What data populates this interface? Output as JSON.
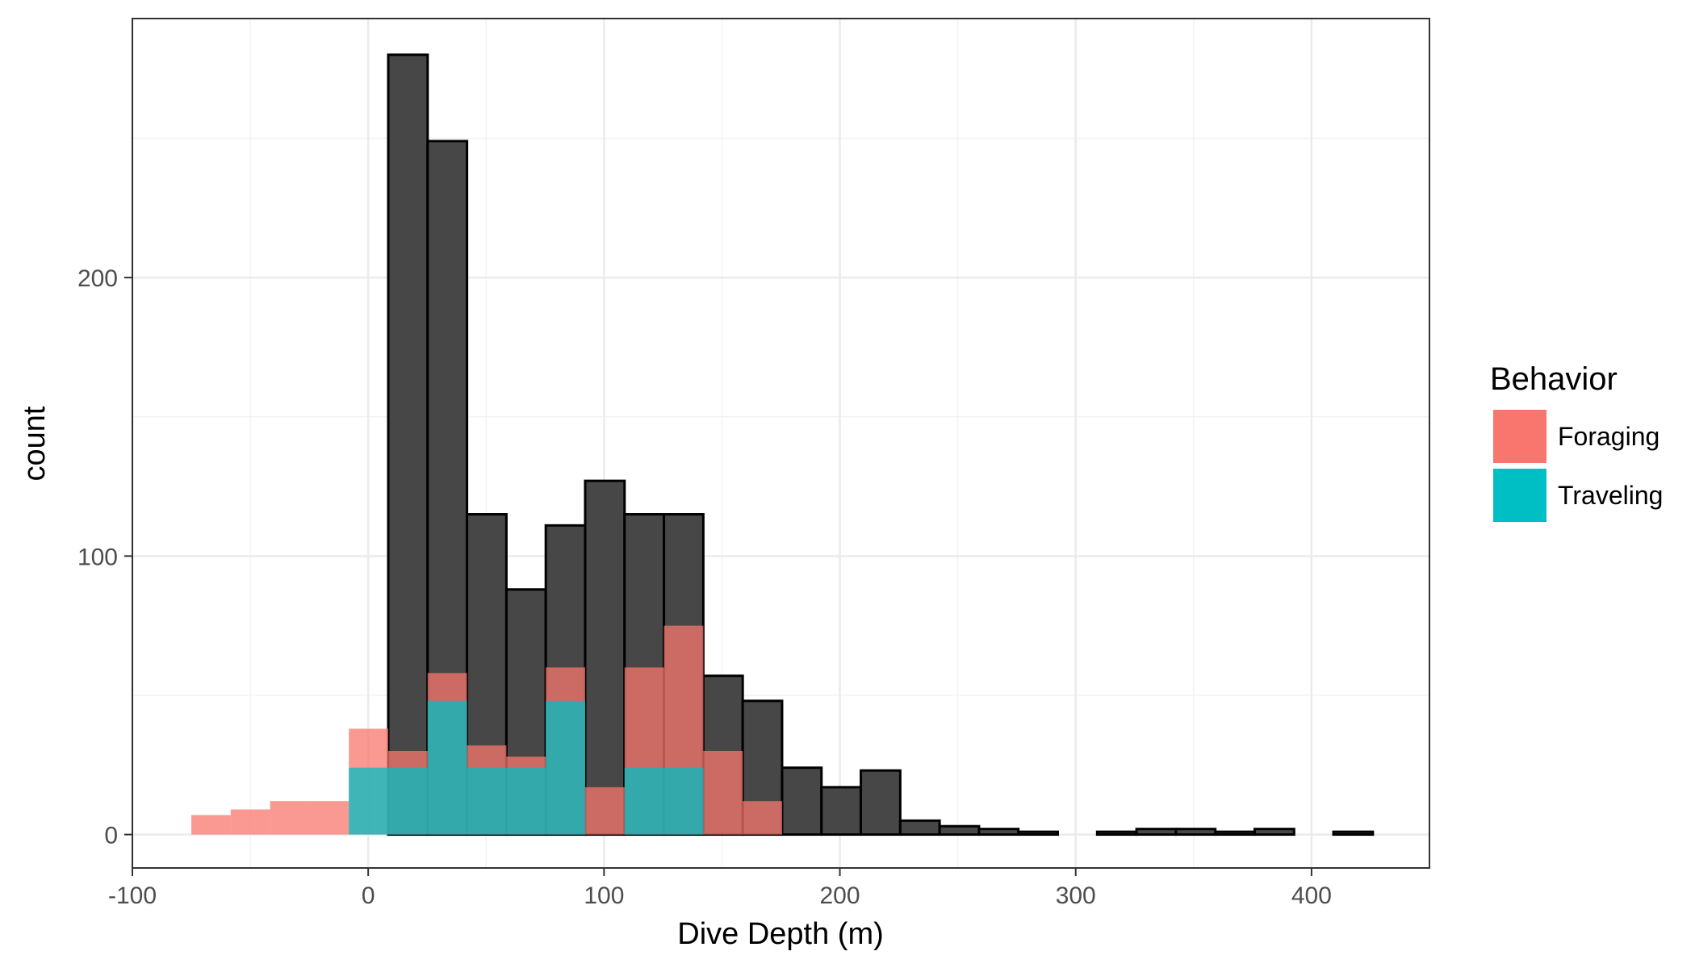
{
  "chart_data": {
    "type": "bar",
    "xlabel": "Dive Depth (m)",
    "ylabel": "count",
    "xlim": [
      -100,
      450
    ],
    "ylim": [
      -12,
      293
    ],
    "x_ticks": [
      -100,
      0,
      100,
      200,
      300,
      400
    ],
    "x_tick_labels": [
      "-100",
      "0",
      "100",
      "200",
      "300",
      "400"
    ],
    "y_ticks": [
      0,
      100,
      200
    ],
    "y_tick_labels": [
      "0",
      "100",
      "200"
    ],
    "grid": true,
    "bin_width": 16.7,
    "total_series": {
      "bins": [
        {
          "x0": -75.0,
          "x1": -58.3,
          "count": 0
        },
        {
          "x0": -58.3,
          "x1": -41.6,
          "count": 0
        },
        {
          "x0": -41.6,
          "x1": -24.9,
          "count": 0
        },
        {
          "x0": -24.9,
          "x1": -8.2,
          "count": 0
        },
        {
          "x0": -8.2,
          "x1": 8.5,
          "count": 0
        },
        {
          "x0": 8.5,
          "x1": 25.2,
          "count": 280
        },
        {
          "x0": 25.2,
          "x1": 41.9,
          "count": 249
        },
        {
          "x0": 41.9,
          "x1": 58.6,
          "count": 115
        },
        {
          "x0": 58.6,
          "x1": 75.3,
          "count": 88
        },
        {
          "x0": 75.3,
          "x1": 92.0,
          "count": 111
        },
        {
          "x0": 92.0,
          "x1": 108.7,
          "count": 127
        },
        {
          "x0": 108.7,
          "x1": 125.4,
          "count": 115
        },
        {
          "x0": 125.4,
          "x1": 142.1,
          "count": 115
        },
        {
          "x0": 142.1,
          "x1": 158.8,
          "count": 57
        },
        {
          "x0": 158.8,
          "x1": 175.5,
          "count": 48
        },
        {
          "x0": 175.5,
          "x1": 192.2,
          "count": 24
        },
        {
          "x0": 192.2,
          "x1": 208.9,
          "count": 17
        },
        {
          "x0": 208.9,
          "x1": 225.6,
          "count": 23
        },
        {
          "x0": 225.6,
          "x1": 242.3,
          "count": 5
        },
        {
          "x0": 242.3,
          "x1": 259.0,
          "count": 3
        },
        {
          "x0": 259.0,
          "x1": 275.7,
          "count": 2
        },
        {
          "x0": 275.7,
          "x1": 292.4,
          "count": 1
        },
        {
          "x0": 292.4,
          "x1": 309.1,
          "count": 0
        },
        {
          "x0": 309.1,
          "x1": 325.8,
          "count": 1
        },
        {
          "x0": 325.8,
          "x1": 342.5,
          "count": 2
        },
        {
          "x0": 342.5,
          "x1": 359.2,
          "count": 2
        },
        {
          "x0": 359.2,
          "x1": 375.9,
          "count": 1
        },
        {
          "x0": 375.9,
          "x1": 392.6,
          "count": 2
        },
        {
          "x0": 392.6,
          "x1": 409.3,
          "count": 0
        },
        {
          "x0": 409.3,
          "x1": 426.0,
          "count": 1
        }
      ]
    },
    "series": [
      {
        "name": "Foraging",
        "color": "#F8766D",
        "bins": [
          {
            "x0": -75.0,
            "x1": -58.3,
            "count": 7
          },
          {
            "x0": -58.3,
            "x1": -41.6,
            "count": 9
          },
          {
            "x0": -41.6,
            "x1": -24.9,
            "count": 12
          },
          {
            "x0": -24.9,
            "x1": -8.2,
            "count": 12
          },
          {
            "x0": -8.2,
            "x1": 8.5,
            "count": 38
          },
          {
            "x0": 8.5,
            "x1": 25.2,
            "count": 30
          },
          {
            "x0": 25.2,
            "x1": 41.9,
            "count": 58
          },
          {
            "x0": 41.9,
            "x1": 58.6,
            "count": 32
          },
          {
            "x0": 58.6,
            "x1": 75.3,
            "count": 28
          },
          {
            "x0": 75.3,
            "x1": 92.0,
            "count": 60
          },
          {
            "x0": 92.0,
            "x1": 108.7,
            "count": 17
          },
          {
            "x0": 108.7,
            "x1": 125.4,
            "count": 60
          },
          {
            "x0": 125.4,
            "x1": 142.1,
            "count": 75
          },
          {
            "x0": 142.1,
            "x1": 158.8,
            "count": 30
          },
          {
            "x0": 158.8,
            "x1": 175.5,
            "count": 12
          }
        ]
      },
      {
        "name": "Traveling",
        "color": "#00BFC4",
        "bins": [
          {
            "x0": -8.2,
            "x1": 8.5,
            "count": 24
          },
          {
            "x0": 8.5,
            "x1": 25.2,
            "count": 24
          },
          {
            "x0": 25.2,
            "x1": 41.9,
            "count": 48
          },
          {
            "x0": 41.9,
            "x1": 58.6,
            "count": 24
          },
          {
            "x0": 58.6,
            "x1": 75.3,
            "count": 24
          },
          {
            "x0": 75.3,
            "x1": 92.0,
            "count": 48
          },
          {
            "x0": 108.7,
            "x1": 125.4,
            "count": 24
          },
          {
            "x0": 125.4,
            "x1": 142.1,
            "count": 24
          }
        ]
      }
    ],
    "total_color": "#474747",
    "legend": {
      "title": "Behavior",
      "position": "right"
    }
  }
}
